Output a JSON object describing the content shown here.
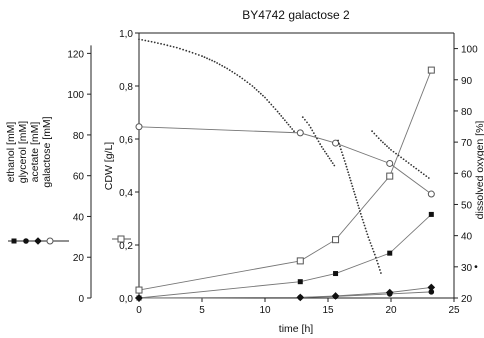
{
  "chart_data": {
    "type": "line",
    "title": "BY4742 galactose 2",
    "xlabel": "time [h]",
    "ylabel_left_outer": [
      "ethanol [mM]",
      "glycerol [mM]",
      "acetate [mM]",
      "galactose [mM]"
    ],
    "ylabel_left_inner": "CDW [g/L]",
    "ylabel_right": "dissolved oxygen [%]",
    "xlim": [
      0,
      25
    ],
    "x_ticks": [
      0,
      5,
      10,
      15,
      20,
      25
    ],
    "ylim_mM": [
      0,
      130
    ],
    "mM_ticks": [
      0,
      20,
      40,
      60,
      80,
      100,
      120
    ],
    "ylim_cdw": [
      0,
      1.0
    ],
    "cdw_ticks": [
      "0,0",
      "0,2",
      "0,4",
      "0,6",
      "0,8",
      "1,0"
    ],
    "ylim_do": [
      20,
      105
    ],
    "do_ticks": [
      20,
      30,
      40,
      50,
      60,
      70,
      80,
      90,
      100
    ],
    "series": [
      {
        "name": "ethanol",
        "axis": "mM",
        "marker": "filled-square",
        "x": [
          0,
          12.8,
          15.6,
          19.9,
          23.2
        ],
        "y": [
          0,
          8,
          12,
          22,
          41
        ]
      },
      {
        "name": "glycerol",
        "axis": "mM",
        "marker": "filled-circle",
        "x": [
          0,
          12.8,
          15.6,
          19.9,
          23.2
        ],
        "y": [
          0,
          0.3,
          0.8,
          2,
          3
        ]
      },
      {
        "name": "acetate",
        "axis": "mM",
        "marker": "filled-diamond",
        "x": [
          0,
          12.8,
          15.6,
          19.9,
          23.2
        ],
        "y": [
          0,
          0.3,
          1,
          2.7,
          5.2
        ]
      },
      {
        "name": "galactose",
        "axis": "mM",
        "marker": "open-circle",
        "x": [
          0,
          12.8,
          15.6,
          19.9,
          23.2
        ],
        "y": [
          84,
          81,
          76,
          66,
          51
        ]
      },
      {
        "name": "CDW",
        "axis": "cdw",
        "marker": "open-square",
        "x": [
          0,
          12.8,
          15.6,
          19.9,
          23.2
        ],
        "y": [
          0.03,
          0.14,
          0.22,
          0.46,
          0.86
        ]
      },
      {
        "name": "dissolved oxygen",
        "axis": "do",
        "marker": "dot",
        "segments": [
          {
            "x": [
              0,
              1,
              2,
              3,
              4,
              5,
              6,
              7,
              8,
              9,
              10,
              11,
              12.3
            ],
            "y": [
              103,
              102.2,
              101.3,
              100.3,
              99,
              97.6,
              95.8,
              93.6,
              91,
              88,
              84.3,
              79.8,
              73.5
            ]
          },
          {
            "x": [
              13,
              13.5,
              14,
              14.5,
              15,
              15.5
            ],
            "y": [
              78,
              75.5,
              72,
              68.5,
              65.5,
              62.5
            ]
          },
          {
            "x": [
              15.8,
              16.4,
              17,
              17.6,
              18.2,
              18.8,
              19.2
            ],
            "y": [
              70.5,
              63,
              55,
              47,
              39.5,
              33,
              28
            ]
          },
          {
            "x": [
              18.5,
              19.2,
              20,
              21,
              22,
              23
            ],
            "y": [
              73.5,
              70.5,
              67.5,
              64.5,
              61.5,
              58.5
            ]
          }
        ]
      }
    ],
    "dots_legend_symbol": "•",
    "grid": false
  }
}
